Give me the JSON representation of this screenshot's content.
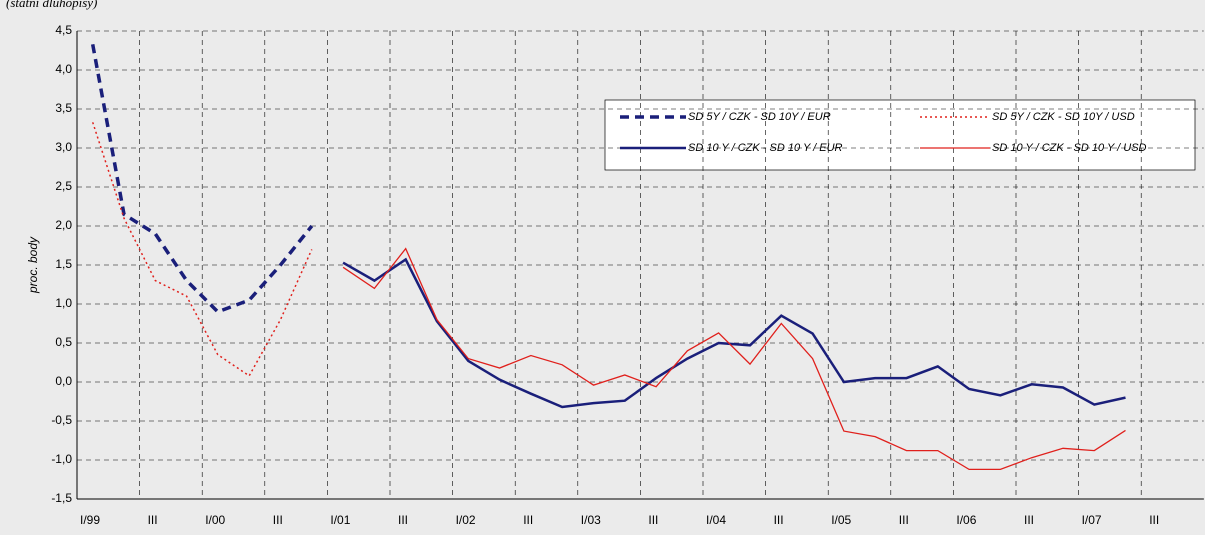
{
  "chart_data": {
    "type": "line",
    "subtitle": "(státní dluhopisy)",
    "y_label": "proc. body",
    "categories": [
      "I/99",
      null,
      "III",
      null,
      "I/00",
      null,
      "III",
      null,
      "I/01",
      null,
      "III",
      null,
      "I/02",
      null,
      "III",
      null,
      "I/03",
      null,
      "III",
      null,
      "I/04",
      null,
      "III",
      null,
      "I/05",
      null,
      "III",
      null,
      "I/06",
      null,
      "III",
      null,
      "I/07",
      null,
      "III",
      null
    ],
    "ylim": [
      -1.5,
      4.5
    ],
    "yticks": [
      {
        "value": -1.5,
        "label": "-1,5"
      },
      {
        "value": -1,
        "label": "-1,0"
      },
      {
        "value": -0.5,
        "label": "-0,5"
      },
      {
        "value": 0,
        "label": "0,0"
      },
      {
        "value": 0.5,
        "label": "0,5"
      },
      {
        "value": 1,
        "label": "1,0"
      },
      {
        "value": 1.5,
        "label": "1,5"
      },
      {
        "value": 2,
        "label": "2,0"
      },
      {
        "value": 2.5,
        "label": "2,5"
      },
      {
        "value": 3,
        "label": "3,0"
      },
      {
        "value": 3.5,
        "label": "3,5"
      },
      {
        "value": 4,
        "label": "4,0"
      },
      {
        "value": 4.5,
        "label": "4,5"
      }
    ],
    "grid": true,
    "series": [
      {
        "name": "SD 5Y / CZK - SD 10Y / EUR",
        "color": "#1a1f7a",
        "line_style": "dashed",
        "width": 3.5,
        "values": [
          4.33,
          2.15,
          1.9,
          1.3,
          0.9,
          1.05,
          1.5,
          2.0,
          null,
          null,
          null,
          null,
          null,
          null,
          null,
          null,
          null,
          null,
          null,
          null,
          null,
          null,
          null,
          null,
          null,
          null,
          null,
          null,
          null,
          null,
          null,
          null,
          null,
          null,
          null,
          null
        ]
      },
      {
        "name": "SD 5Y / CZK - SD 10Y / USD",
        "color": "#e0201c",
        "line_style": "dotted",
        "width": 1.5,
        "values": [
          3.33,
          2.1,
          1.3,
          1.1,
          0.35,
          0.08,
          0.8,
          1.7,
          null,
          null,
          null,
          null,
          null,
          null,
          null,
          null,
          null,
          null,
          null,
          null,
          null,
          null,
          null,
          null,
          null,
          null,
          null,
          null,
          null,
          null,
          null,
          null,
          null,
          null,
          null,
          null
        ]
      },
      {
        "name": "SD 10 Y / CZK - SD 10 Y / EUR",
        "color": "#1a1f7a",
        "line_style": "solid",
        "width": 2.5,
        "values": [
          null,
          null,
          null,
          null,
          null,
          null,
          null,
          null,
          1.53,
          1.3,
          1.57,
          0.78,
          0.27,
          0.03,
          -0.15,
          -0.32,
          -0.27,
          -0.24,
          0.05,
          0.3,
          0.5,
          0.47,
          0.85,
          0.62,
          0.0,
          0.05,
          0.05,
          0.2,
          -0.09,
          -0.17,
          -0.03,
          -0.07,
          -0.29,
          -0.2,
          null,
          null
        ]
      },
      {
        "name": "SD 10 Y / CZK - SD 10 Y / USD",
        "color": "#e0201c",
        "line_style": "solid",
        "width": 1.3,
        "values": [
          null,
          null,
          null,
          null,
          null,
          null,
          null,
          null,
          1.47,
          1.2,
          1.71,
          0.8,
          0.3,
          0.18,
          0.34,
          0.22,
          -0.04,
          0.09,
          -0.06,
          0.4,
          0.63,
          0.23,
          0.75,
          0.3,
          -0.63,
          -0.7,
          -0.88,
          -0.88,
          -1.12,
          -1.12,
          -0.97,
          -0.85,
          -0.88,
          -0.62,
          null,
          null
        ]
      }
    ]
  }
}
